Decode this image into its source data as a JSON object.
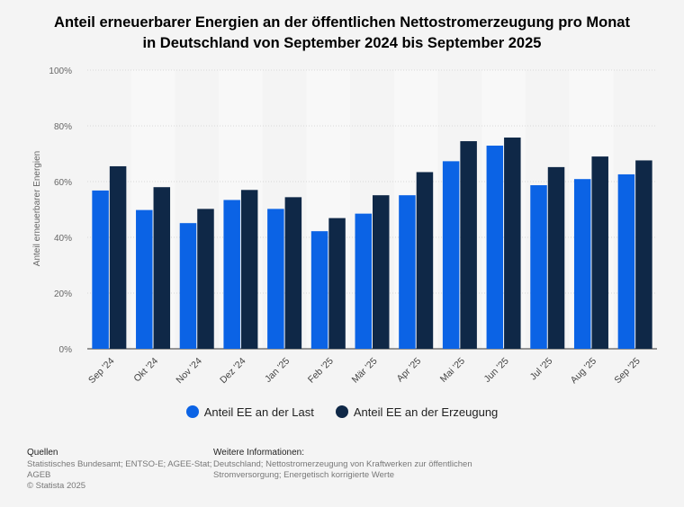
{
  "chart_data": {
    "type": "bar",
    "title": "Anteil erneuerbarer Energien an der öffentlichen Nettostromerzeugung pro Monat in Deutschland von September 2024 bis September 2025",
    "title_lines": [
      "Anteil erneuerbarer Energien an der öffentlichen Nettostromerzeugung pro Monat",
      "in Deutschland von September 2024 bis September 2025"
    ],
    "ylabel": "Anteil erneuerbarer Energien",
    "xlabel": "",
    "ylim": [
      0,
      100
    ],
    "yticks": [
      0,
      20,
      40,
      60,
      80,
      100
    ],
    "ytick_labels": [
      "0%",
      "20%",
      "40%",
      "60%",
      "80%",
      "100%"
    ],
    "categories": [
      "Sep '24",
      "Okt '24",
      "Nov '24",
      "Dez '24",
      "Jan '25",
      "Feb '25",
      "Mär '25",
      "Apr '25",
      "Mai '25",
      "Jun '25",
      "Jul '25",
      "Aug '25",
      "Sep '25"
    ],
    "series": [
      {
        "name": "Anteil EE an der Last",
        "color": "#0b63e5",
        "values": [
          56.8,
          49.8,
          45.1,
          53.4,
          50.2,
          42.2,
          48.5,
          55.1,
          67.3,
          72.9,
          58.7,
          60.9,
          62.6
        ]
      },
      {
        "name": "Anteil EE an der Erzeugung",
        "color": "#0f2847",
        "values": [
          65.5,
          58.0,
          50.2,
          57.0,
          54.4,
          46.9,
          55.1,
          63.4,
          74.5,
          75.8,
          65.2,
          69.0,
          67.6
        ]
      }
    ],
    "legend": "bottom",
    "grid": true
  },
  "footer": {
    "sources_title": "Quellen",
    "sources": [
      "Statistisches Bundesamt; ENTSO-E; AGEE-Stat;",
      "AGEB",
      "© Statista 2025"
    ],
    "info_title": "Weitere Informationen:",
    "info": [
      "Deutschland; Nettostromerzeugung von Kraftwerken zur öffentlichen",
      "Stromversorgung; Energetisch korrigierte Werte"
    ]
  }
}
